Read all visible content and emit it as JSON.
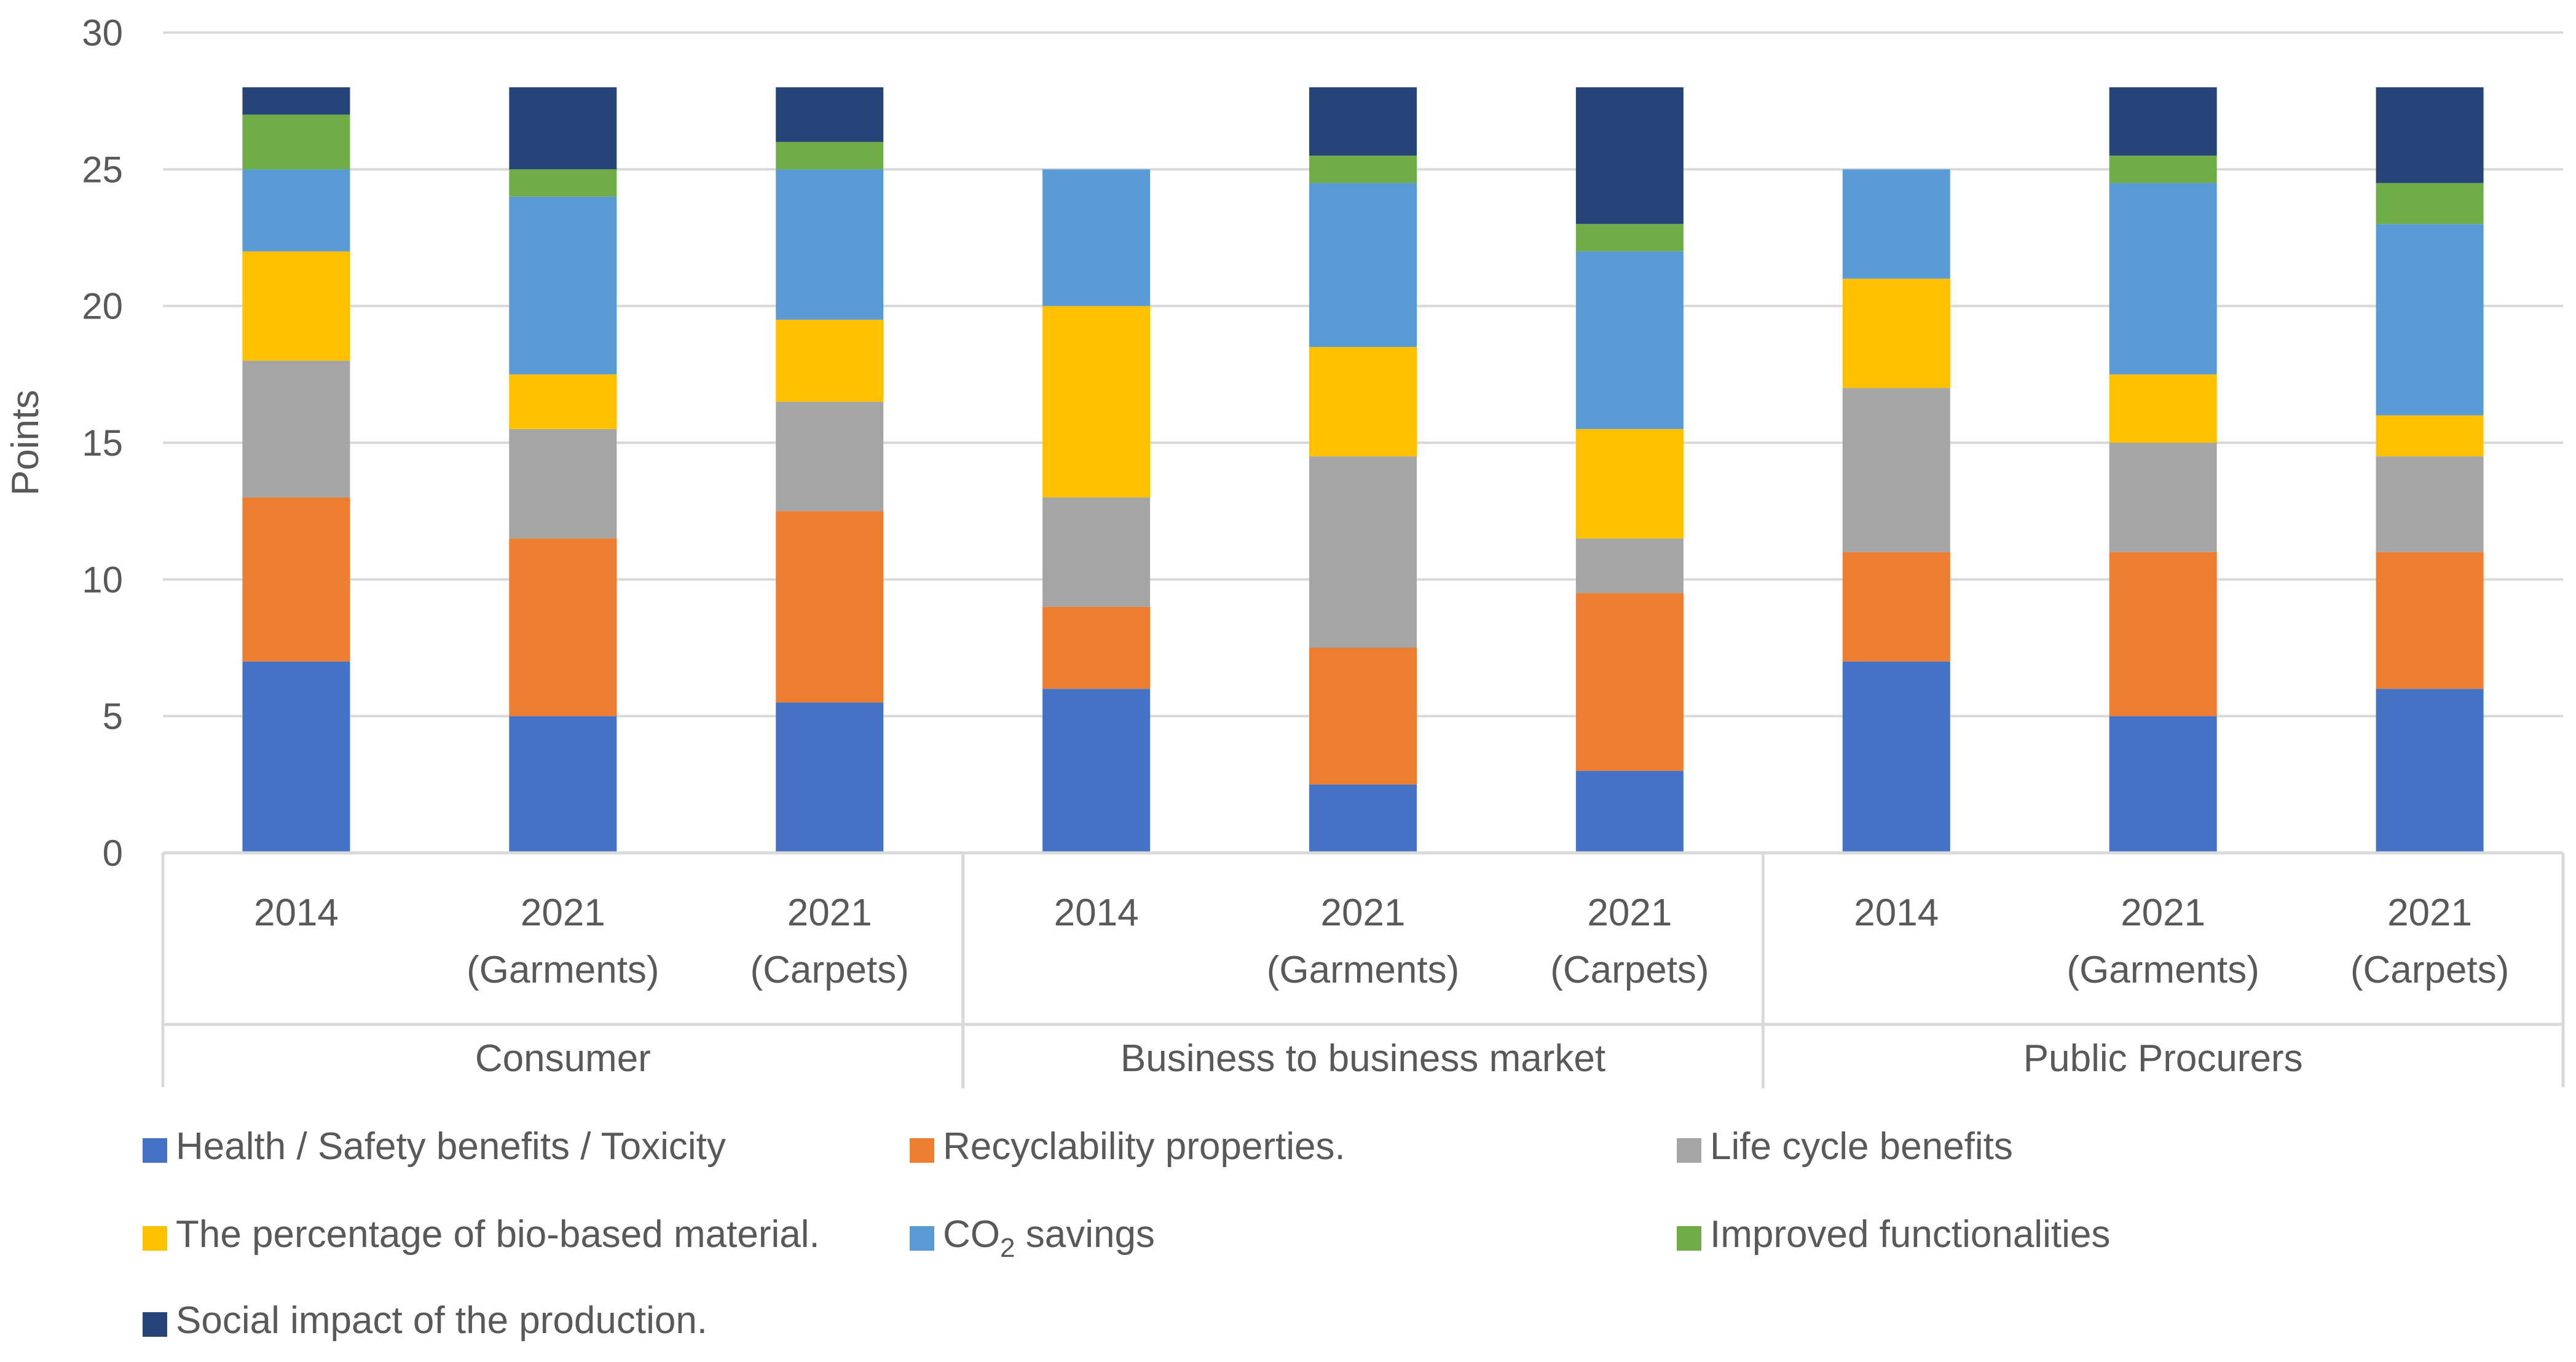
{
  "chart_data": {
    "type": "bar",
    "stacked": true,
    "title": "",
    "xlabel": "",
    "ylabel": "Points",
    "ylim": [
      0,
      30
    ],
    "yticks": [
      0,
      5,
      10,
      15,
      20,
      25,
      30
    ],
    "grid": true,
    "legend_position": "bottom",
    "groups": [
      {
        "name": "Consumer",
        "categories": [
          [
            "2014"
          ],
          [
            "2021",
            "(Garments)"
          ],
          [
            "2021",
            "(Carpets)"
          ]
        ]
      },
      {
        "name": "Business to business market",
        "categories": [
          [
            "2014"
          ],
          [
            "2021",
            "(Garments)"
          ],
          [
            "2021",
            "(Carpets)"
          ]
        ]
      },
      {
        "name": "Public Procurers",
        "categories": [
          [
            "2014"
          ],
          [
            "2021",
            "(Garments)"
          ],
          [
            "2021",
            "(Carpets)"
          ]
        ]
      }
    ],
    "series": [
      {
        "name": "Health / Safety benefits / Toxicity",
        "color": "#4472C4",
        "values": [
          7,
          5,
          5.5,
          6,
          2.5,
          3,
          7,
          5,
          6
        ]
      },
      {
        "name": "Recyclability properties.",
        "color": "#ED7D31",
        "values": [
          6,
          6.5,
          7,
          3,
          5,
          6.5,
          4,
          6,
          5
        ]
      },
      {
        "name": "Life cycle benefits",
        "color": "#A5A5A5",
        "values": [
          5,
          4,
          4,
          4,
          7,
          2,
          6,
          4,
          3.5
        ]
      },
      {
        "name": "The percentage of bio-based material.",
        "color": "#FFC000",
        "values": [
          4,
          2,
          3,
          7,
          4,
          4,
          4,
          2.5,
          1.5
        ]
      },
      {
        "name": "CO2 savings",
        "label_main": "CO",
        "label_sub": "2",
        "label_rest": " savings",
        "color": "#5B9BD5",
        "values": [
          3,
          6.5,
          5.5,
          5,
          6,
          6.5,
          4,
          7,
          7
        ]
      },
      {
        "name": "Improved functionalities",
        "color": "#70AD47",
        "values": [
          2,
          1,
          1,
          0,
          1,
          1,
          0,
          1,
          1.5
        ]
      },
      {
        "name": "Social impact of the production.",
        "color": "#264478",
        "values": [
          1,
          3,
          2,
          0,
          2.5,
          5,
          0,
          2.5,
          3.5
        ]
      }
    ]
  }
}
